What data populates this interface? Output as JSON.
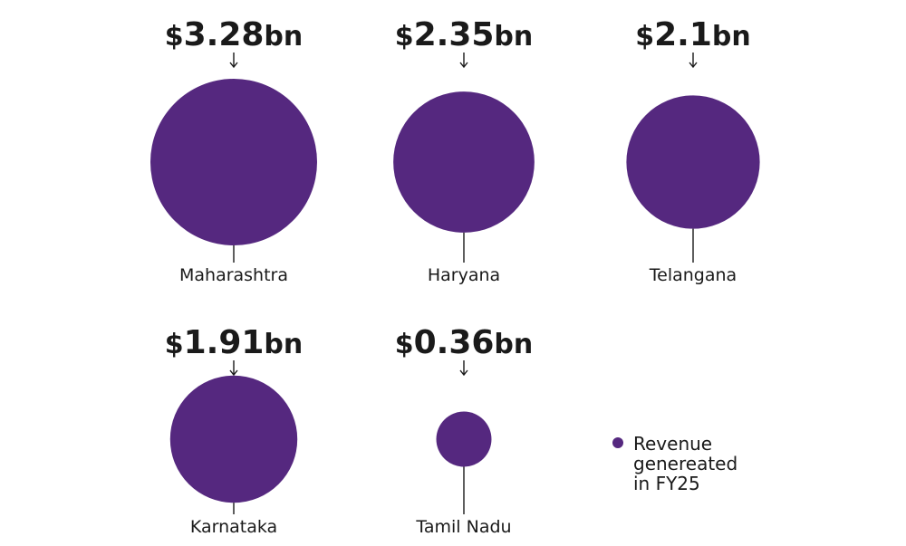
{
  "chart_data": {
    "type": "bubble",
    "categories": [
      "Maharashtra",
      "Haryana",
      "Telangana",
      "Karnataka",
      "Tamil Nadu"
    ],
    "values": [
      3.28,
      2.35,
      2.1,
      1.91,
      0.36
    ],
    "value_labels": [
      {
        "prefix": "$",
        "number": "3.28",
        "suffix": "bn"
      },
      {
        "prefix": "$",
        "number": "2.35",
        "suffix": "bn"
      },
      {
        "prefix": "$",
        "number": "2.1",
        "suffix": "bn"
      },
      {
        "prefix": "$",
        "number": "1.91",
        "suffix": "bn"
      },
      {
        "prefix": "$",
        "number": "0.36",
        "suffix": "bn"
      }
    ],
    "unit": "$bn",
    "legend": {
      "label_lines": [
        "Revenue",
        "genereated",
        "in FY25"
      ],
      "placement": "bottom-right"
    },
    "colors": {
      "bubble": "#55287f",
      "text": "#1a1a1a",
      "connector": "#1a1a1a"
    }
  }
}
